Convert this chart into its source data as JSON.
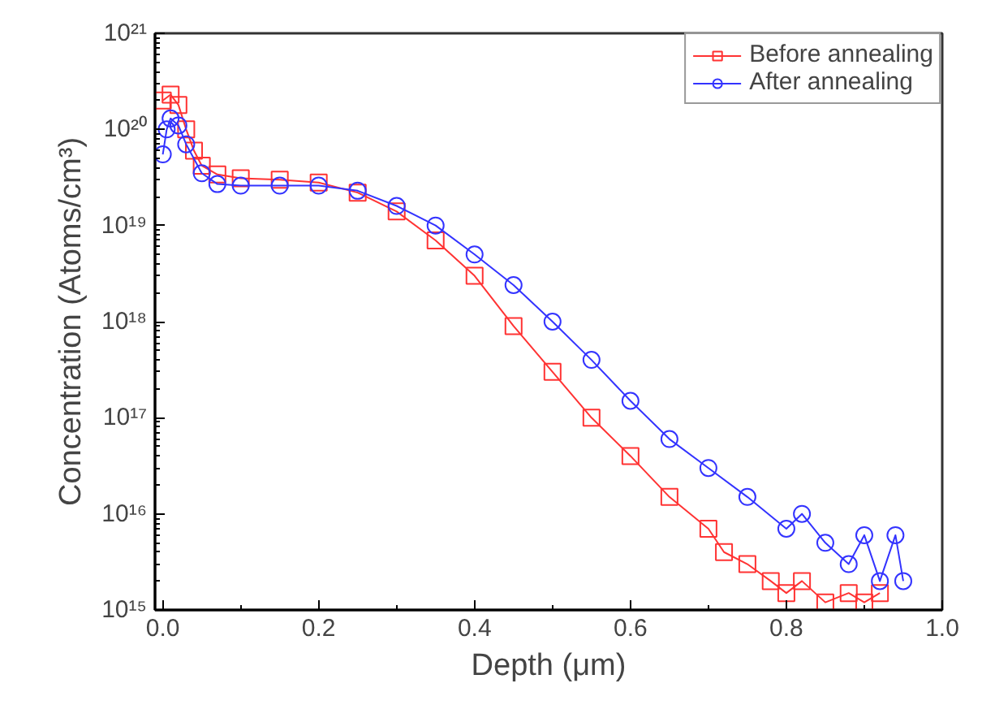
{
  "chart_data": {
    "type": "line",
    "xlabel": "Depth (μm)",
    "ylabel": "Concentration (Atoms/cm³)",
    "log": "y",
    "xlim": [
      -0.01,
      1.0
    ],
    "ylim": [
      1000000000000000.0,
      1e+21
    ],
    "xticks": [
      {
        "value": 0,
        "label": "0.0"
      },
      0.2,
      0.4,
      0.6,
      0.8,
      {
        "value": 1,
        "label": "1.0"
      }
    ],
    "yticks": [
      {
        "value": 1000000000000000.0,
        "label": "10¹⁵"
      },
      {
        "value": 1e+16,
        "label": "10¹⁶"
      },
      {
        "value": 1e+17,
        "label": "10¹⁷"
      },
      {
        "value": 1e+18,
        "label": "10¹⁸"
      },
      {
        "value": 1e+19,
        "label": "10¹⁹"
      },
      {
        "value": 1e+20,
        "label": "10²⁰"
      },
      {
        "value": 1e+21,
        "label": "10²¹"
      }
    ],
    "grid": false,
    "legend": "top right",
    "series": [
      {
        "name": "Before annealing",
        "color": "#ff3333",
        "marker": "square",
        "x": [
          0.0,
          0.01,
          0.02,
          0.03,
          0.04,
          0.05,
          0.07,
          0.1,
          0.15,
          0.2,
          0.25,
          0.3,
          0.35,
          0.4,
          0.45,
          0.5,
          0.55,
          0.6,
          0.65,
          0.7,
          0.72,
          0.75,
          0.78,
          0.8,
          0.82,
          0.85,
          0.88,
          0.9,
          0.92
        ],
        "values": [
          2e+20,
          2.3e+20,
          1.8e+20,
          1e+20,
          6e+19,
          4.2e+19,
          3.4e+19,
          3.1e+19,
          3e+19,
          2.8e+19,
          2.2e+19,
          1.4e+19,
          7e+18,
          3e+18,
          9e+17,
          3e+17,
          1e+17,
          4e+16,
          1.5e+16,
          7000000000000000.0,
          4000000000000000.0,
          3000000000000000.0,
          2000000000000000.0,
          1500000000000000.0,
          2000000000000000.0,
          1200000000000000.0,
          1500000000000000.0,
          1200000000000000.0,
          1500000000000000.0
        ]
      },
      {
        "name": "After annealing",
        "color": "#3333ff",
        "marker": "circle",
        "x": [
          0.0,
          0.005,
          0.01,
          0.02,
          0.03,
          0.05,
          0.07,
          0.1,
          0.15,
          0.2,
          0.25,
          0.3,
          0.35,
          0.4,
          0.45,
          0.5,
          0.55,
          0.6,
          0.65,
          0.7,
          0.75,
          0.8,
          0.82,
          0.85,
          0.88,
          0.9,
          0.92,
          0.94,
          0.95
        ],
        "values": [
          5.5e+19,
          1e+20,
          1.3e+20,
          1.1e+20,
          7e+19,
          3.5e+19,
          2.7e+19,
          2.6e+19,
          2.6e+19,
          2.6e+19,
          2.3e+19,
          1.6e+19,
          1e+19,
          5e+18,
          2.4e+18,
          1e+18,
          4e+17,
          1.5e+17,
          6e+16,
          3e+16,
          1.5e+16,
          7000000000000000.0,
          1e+16,
          5000000000000000.0,
          3000000000000000.0,
          6000000000000000.0,
          2000000000000000.0,
          6000000000000000.0,
          2000000000000000.0
        ]
      }
    ]
  }
}
